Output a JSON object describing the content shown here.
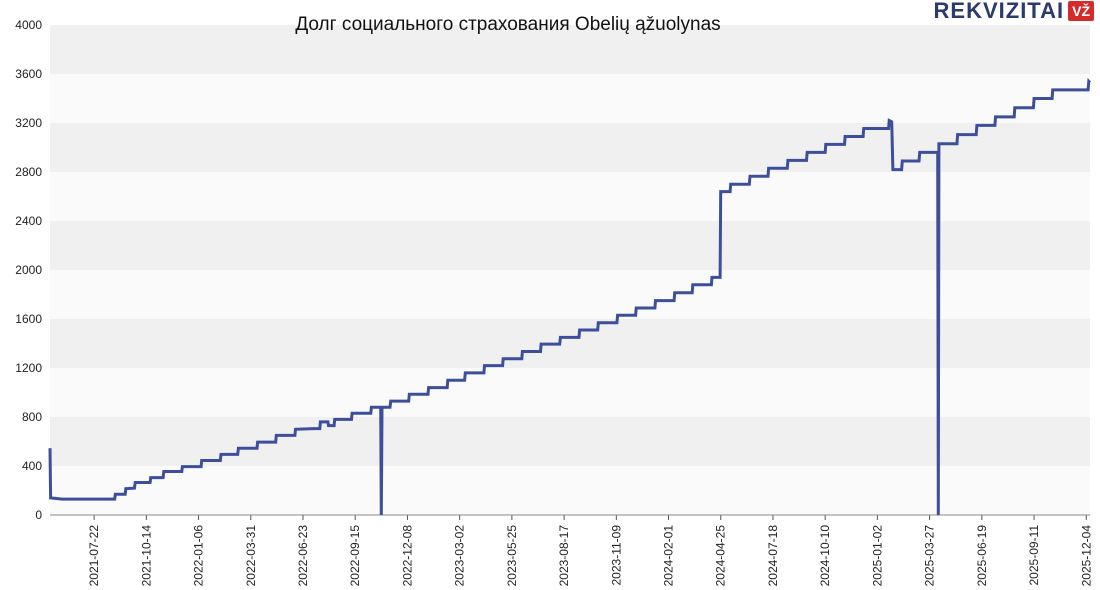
{
  "logo": {
    "text": "REKVIZITAI",
    "badge": "VŽ"
  },
  "chart_data": {
    "type": "line",
    "title": "Долг социального страхования Obelių ąžuolynas",
    "xlabel": "",
    "ylabel": "",
    "ylim": [
      0,
      4000
    ],
    "yticks": [
      0,
      400,
      800,
      1200,
      1600,
      2000,
      2400,
      2800,
      3200,
      3600,
      4000
    ],
    "x_range": [
      "2021-05-12",
      "2025-12-10"
    ],
    "xticks": [
      "2021-07-22",
      "2021-10-14",
      "2022-01-06",
      "2022-03-31",
      "2022-06-23",
      "2022-09-15",
      "2022-12-08",
      "2023-03-02",
      "2023-05-25",
      "2023-08-17",
      "2023-11-09",
      "2024-02-01",
      "2024-04-25",
      "2024-07-18",
      "2024-10-10",
      "2025-01-02",
      "2025-03-27",
      "2025-06-19",
      "2025-09-11",
      "2025-12-04"
    ],
    "grid": true,
    "line_color": "#3d4f9a",
    "band_colors": [
      "#f0f0f0",
      "#fafafa"
    ],
    "series": [
      {
        "points": [
          [
            "2021-05-12",
            545
          ],
          [
            "2021-05-13",
            140
          ],
          [
            "2021-06-01",
            130
          ],
          [
            "2021-08-24",
            130
          ],
          [
            "2021-08-25",
            170
          ],
          [
            "2021-09-10",
            170
          ],
          [
            "2021-09-11",
            215
          ],
          [
            "2021-09-25",
            220
          ],
          [
            "2021-09-26",
            265
          ],
          [
            "2021-10-20",
            265
          ],
          [
            "2021-10-21",
            305
          ],
          [
            "2021-11-10",
            305
          ],
          [
            "2021-11-11",
            355
          ],
          [
            "2021-12-10",
            355
          ],
          [
            "2021-12-11",
            395
          ],
          [
            "2022-01-10",
            395
          ],
          [
            "2022-01-11",
            445
          ],
          [
            "2022-02-10",
            445
          ],
          [
            "2022-02-11",
            495
          ],
          [
            "2022-03-10",
            495
          ],
          [
            "2022-03-11",
            545
          ],
          [
            "2022-04-10",
            545
          ],
          [
            "2022-04-11",
            595
          ],
          [
            "2022-05-10",
            595
          ],
          [
            "2022-05-11",
            650
          ],
          [
            "2022-06-10",
            650
          ],
          [
            "2022-06-11",
            700
          ],
          [
            "2022-07-10",
            705
          ],
          [
            "2022-07-20",
            705
          ],
          [
            "2022-07-21",
            760
          ],
          [
            "2022-08-02",
            760
          ],
          [
            "2022-08-03",
            730
          ],
          [
            "2022-08-12",
            730
          ],
          [
            "2022-08-13",
            780
          ],
          [
            "2022-09-09",
            780
          ],
          [
            "2022-09-10",
            830
          ],
          [
            "2022-10-10",
            830
          ],
          [
            "2022-10-11",
            880
          ],
          [
            "2022-10-26",
            880
          ],
          [
            "2022-10-27",
            0
          ],
          [
            "2022-10-28",
            880
          ],
          [
            "2022-11-10",
            880
          ],
          [
            "2022-11-11",
            930
          ],
          [
            "2022-12-10",
            930
          ],
          [
            "2022-12-11",
            985
          ],
          [
            "2023-01-10",
            985
          ],
          [
            "2023-01-11",
            1040
          ],
          [
            "2023-02-10",
            1040
          ],
          [
            "2023-02-11",
            1100
          ],
          [
            "2023-03-10",
            1100
          ],
          [
            "2023-03-11",
            1160
          ],
          [
            "2023-04-10",
            1160
          ],
          [
            "2023-04-11",
            1220
          ],
          [
            "2023-05-10",
            1220
          ],
          [
            "2023-05-11",
            1275
          ],
          [
            "2023-06-10",
            1275
          ],
          [
            "2023-06-11",
            1335
          ],
          [
            "2023-07-10",
            1335
          ],
          [
            "2023-07-11",
            1395
          ],
          [
            "2023-08-10",
            1395
          ],
          [
            "2023-08-11",
            1450
          ],
          [
            "2023-09-10",
            1450
          ],
          [
            "2023-09-11",
            1510
          ],
          [
            "2023-10-10",
            1510
          ],
          [
            "2023-10-11",
            1570
          ],
          [
            "2023-11-10",
            1570
          ],
          [
            "2023-11-11",
            1630
          ],
          [
            "2023-12-10",
            1630
          ],
          [
            "2023-12-11",
            1690
          ],
          [
            "2024-01-10",
            1690
          ],
          [
            "2024-01-11",
            1750
          ],
          [
            "2024-02-10",
            1750
          ],
          [
            "2024-02-11",
            1815
          ],
          [
            "2024-03-10",
            1815
          ],
          [
            "2024-03-11",
            1880
          ],
          [
            "2024-04-10",
            1880
          ],
          [
            "2024-04-11",
            1940
          ],
          [
            "2024-04-24",
            1940
          ],
          [
            "2024-04-25",
            2640
          ],
          [
            "2024-05-10",
            2640
          ],
          [
            "2024-05-11",
            2700
          ],
          [
            "2024-06-10",
            2700
          ],
          [
            "2024-06-11",
            2765
          ],
          [
            "2024-07-10",
            2765
          ],
          [
            "2024-07-11",
            2830
          ],
          [
            "2024-08-10",
            2830
          ],
          [
            "2024-08-11",
            2895
          ],
          [
            "2024-09-10",
            2895
          ],
          [
            "2024-09-11",
            2960
          ],
          [
            "2024-10-10",
            2960
          ],
          [
            "2024-10-11",
            3025
          ],
          [
            "2024-11-10",
            3025
          ],
          [
            "2024-11-11",
            3090
          ],
          [
            "2024-12-10",
            3090
          ],
          [
            "2024-12-11",
            3155
          ],
          [
            "2025-01-20",
            3155
          ],
          [
            "2025-01-21",
            3220
          ],
          [
            "2025-01-25",
            3210
          ],
          [
            "2025-01-27",
            2820
          ],
          [
            "2025-02-10",
            2820
          ],
          [
            "2025-02-11",
            2890
          ],
          [
            "2025-03-10",
            2890
          ],
          [
            "2025-03-11",
            2960
          ],
          [
            "2025-04-09",
            2960
          ],
          [
            "2025-04-10",
            0
          ],
          [
            "2025-04-11",
            3030
          ],
          [
            "2025-05-10",
            3030
          ],
          [
            "2025-05-11",
            3105
          ],
          [
            "2025-06-10",
            3105
          ],
          [
            "2025-06-11",
            3180
          ],
          [
            "2025-07-10",
            3180
          ],
          [
            "2025-07-11",
            3250
          ],
          [
            "2025-08-10",
            3250
          ],
          [
            "2025-08-11",
            3325
          ],
          [
            "2025-09-10",
            3325
          ],
          [
            "2025-09-11",
            3400
          ],
          [
            "2025-10-10",
            3400
          ],
          [
            "2025-10-11",
            3470
          ],
          [
            "2025-12-07",
            3470
          ],
          [
            "2025-12-08",
            3540
          ],
          [
            "2025-12-10",
            3530
          ]
        ]
      }
    ]
  }
}
